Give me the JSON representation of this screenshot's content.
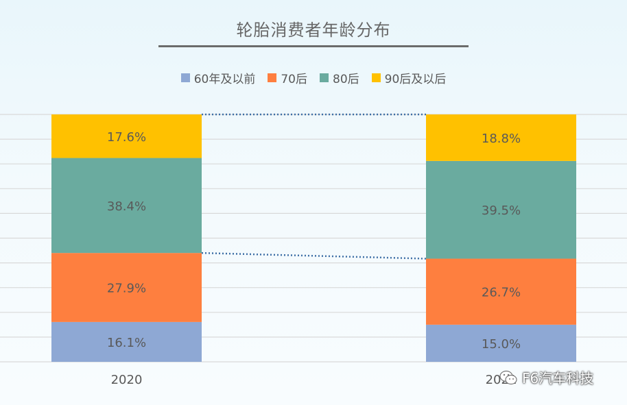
{
  "chart_data": {
    "type": "bar",
    "stacked": true,
    "title": "轮胎消费者年龄分布",
    "categories": [
      "2020",
      "2021"
    ],
    "series": [
      {
        "name": "60年及以前",
        "color": "#8ea8d4",
        "values": [
          16.1,
          15.0
        ],
        "labels": [
          "16.1%",
          "15.0%"
        ]
      },
      {
        "name": "70后",
        "color": "#fe7f3f",
        "values": [
          27.9,
          26.7
        ],
        "labels": [
          "27.9%",
          "26.7%"
        ]
      },
      {
        "name": "80后",
        "color": "#6aab9f",
        "values": [
          38.4,
          39.5
        ],
        "labels": [
          "38.4%",
          "39.5%"
        ]
      },
      {
        "name": "90后及以后",
        "color": "#ffc100",
        "values": [
          17.6,
          18.8
        ],
        "labels": [
          "17.6%",
          "18.8%"
        ]
      }
    ],
    "ylim": [
      0,
      100
    ],
    "grid": true,
    "legend_position": "top",
    "connector_lines": "dotted lines between the 70后/80后 boundary and the chart top"
  },
  "watermark": {
    "text": "F6汽车科技"
  }
}
